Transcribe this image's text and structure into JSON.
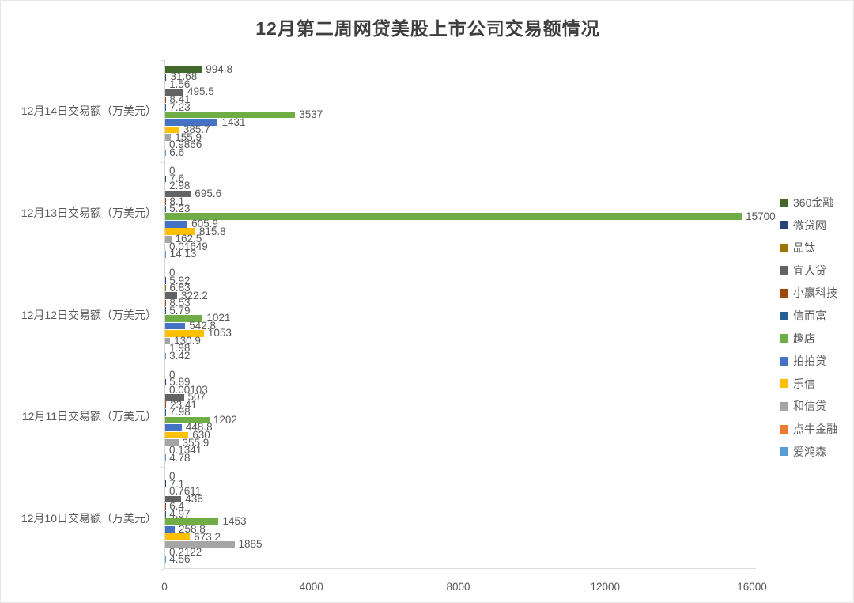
{
  "title": "12月第二周网贷美股上市公司交易额情况",
  "chart_data": {
    "type": "bar",
    "orientation": "horizontal",
    "title": "12月第二周网贷美股上市公司交易额情况",
    "xlabel": "",
    "ylabel": "",
    "xlim": [
      0,
      16000
    ],
    "x_ticks": [
      0,
      4000,
      8000,
      12000,
      16000
    ],
    "grid": false,
    "legend_position": "right",
    "unit": "万美元",
    "categories": [
      "12月14日交易额（万美元）",
      "12月13日交易额（万美元）",
      "12月12日交易额（万美元）",
      "12月11日交易额（万美元）",
      "12月10日交易额（万美元）"
    ],
    "series": [
      {
        "name": "360金融",
        "color": "#43682B",
        "values": [
          994.8,
          0,
          0,
          0,
          0
        ]
      },
      {
        "name": "微贷网",
        "color": "#264478",
        "values": [
          31.68,
          7.6,
          5.92,
          5.89,
          7.1
        ]
      },
      {
        "name": "品钛",
        "color": "#997300",
        "values": [
          1.56,
          2.98,
          6.83,
          0.00103,
          0.7611
        ]
      },
      {
        "name": "宜人贷",
        "color": "#636363",
        "values": [
          495.5,
          695.6,
          322.2,
          507,
          436
        ]
      },
      {
        "name": "小赢科技",
        "color": "#9E480E",
        "values": [
          8.41,
          8.1,
          8.53,
          23.41,
          6.4
        ]
      },
      {
        "name": "信而富",
        "color": "#255E91",
        "values": [
          7.23,
          5.23,
          5.79,
          7.98,
          4.97
        ]
      },
      {
        "name": "趣店",
        "color": "#70AD47",
        "values": [
          3537,
          15700,
          1021,
          1202,
          1453
        ]
      },
      {
        "name": "拍拍贷",
        "color": "#4472C4",
        "values": [
          1431,
          605.9,
          542.8,
          448.8,
          258.8
        ]
      },
      {
        "name": "乐信",
        "color": "#FFC000",
        "values": [
          385.7,
          815.8,
          1053,
          630,
          673.2
        ]
      },
      {
        "name": "和信贷",
        "color": "#A5A5A5",
        "values": [
          155.9,
          162.5,
          130.9,
          355.9,
          1885
        ]
      },
      {
        "name": "点牛金融",
        "color": "#ED7D31",
        "values": [
          0.9866,
          0.01649,
          1.98,
          0.1341,
          0.2122
        ]
      },
      {
        "name": "爱鸿森",
        "color": "#5B9BD5",
        "values": [
          6.6,
          14.13,
          3.42,
          4.78,
          4.56
        ]
      }
    ]
  }
}
